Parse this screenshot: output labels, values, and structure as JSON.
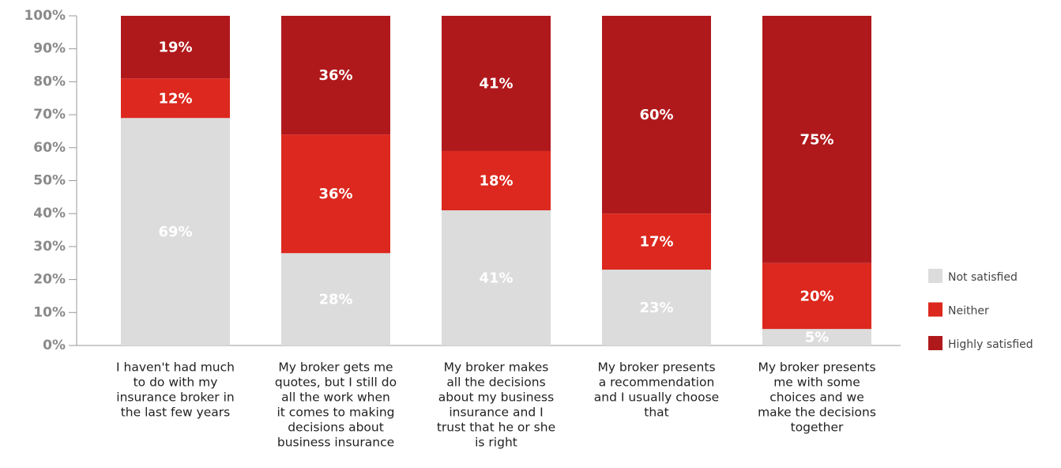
{
  "chart_data": {
    "type": "stacked_bar",
    "categories": [
      [
        "I haven't had much",
        "to do with my",
        "insurance broker in",
        "the last few years"
      ],
      [
        "My broker gets me",
        "quotes, but I still do",
        "all the work when",
        "it comes to making",
        "decisions about",
        "business insurance"
      ],
      [
        "My broker makes",
        "all the decisions",
        "about my business",
        "insurance and I",
        "trust that he or she",
        "is right"
      ],
      [
        "My broker presents",
        "a recommendation",
        "and I usually choose",
        "that"
      ],
      [
        "My broker presents",
        "me with some",
        "choices and we",
        "make the decisions",
        "together"
      ]
    ],
    "series": [
      {
        "name": "Not satisfied",
        "color": "#dcdcdc",
        "values": [
          69,
          28,
          41,
          23,
          5
        ],
        "value_labels": [
          "69%",
          "28%",
          "41%",
          "23%",
          "5%"
        ]
      },
      {
        "name": "Neither",
        "color": "#dc281e",
        "values": [
          12,
          36,
          18,
          17,
          20
        ],
        "value_labels": [
          "12%",
          "36%",
          "18%",
          "17%",
          "20%"
        ]
      },
      {
        "name": "Highly satisfied",
        "color": "#b0191c",
        "values": [
          19,
          36,
          41,
          60,
          75
        ],
        "value_labels": [
          "19%",
          "36%",
          "41%",
          "60%",
          "75%"
        ]
      }
    ],
    "ylim": [
      0,
      100
    ],
    "yticks": [
      {
        "value": 0,
        "label": "0%"
      },
      {
        "value": 10,
        "label": "10%"
      },
      {
        "value": 20,
        "label": "20%"
      },
      {
        "value": 30,
        "label": "30%"
      },
      {
        "value": 40,
        "label": "40%"
      },
      {
        "value": 50,
        "label": "50%"
      },
      {
        "value": 60,
        "label": "60%"
      },
      {
        "value": 70,
        "label": "70%"
      },
      {
        "value": 80,
        "label": "80%"
      },
      {
        "value": 90,
        "label": "90%"
      },
      {
        "value": 100,
        "label": "100%"
      }
    ],
    "legend": "right"
  }
}
